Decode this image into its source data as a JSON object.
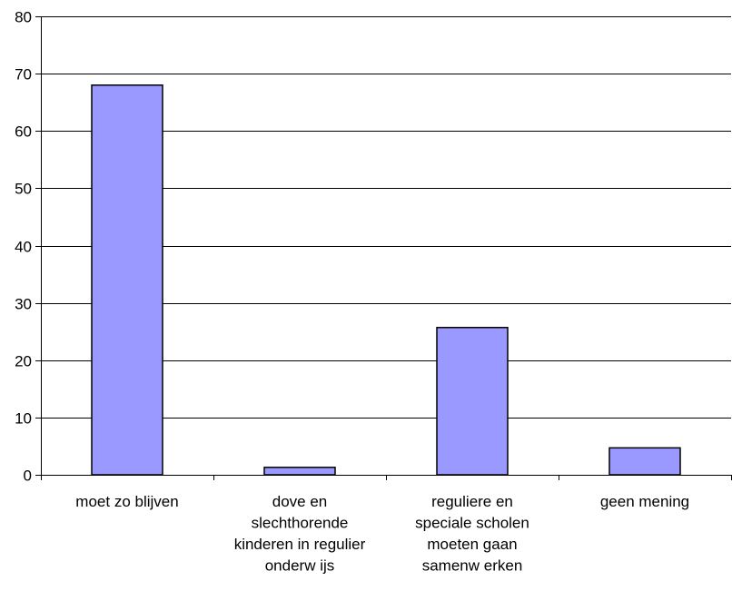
{
  "chart_data": {
    "type": "bar",
    "categories": [
      [
        "moet zo blijven"
      ],
      [
        "dove en",
        "slechthorende",
        "kinderen in regulier",
        "onderw ijs"
      ],
      [
        "reguliere en",
        "speciale scholen",
        "moeten gaan",
        "samenw erken"
      ],
      [
        "geen mening"
      ]
    ],
    "values": [
      68,
      1.3,
      25.7,
      4.7
    ],
    "title": "",
    "xlabel": "",
    "ylabel": "",
    "ylim": [
      0,
      80
    ],
    "yticks": [
      "0",
      "10",
      "20",
      "30",
      "40",
      "50",
      "60",
      "70",
      "80"
    ],
    "grid": true,
    "legend": "none",
    "colors": {
      "bar_fill": "#9999ff",
      "bar_stroke": "#000000",
      "grid": "#000000",
      "axis": "#000000"
    }
  }
}
